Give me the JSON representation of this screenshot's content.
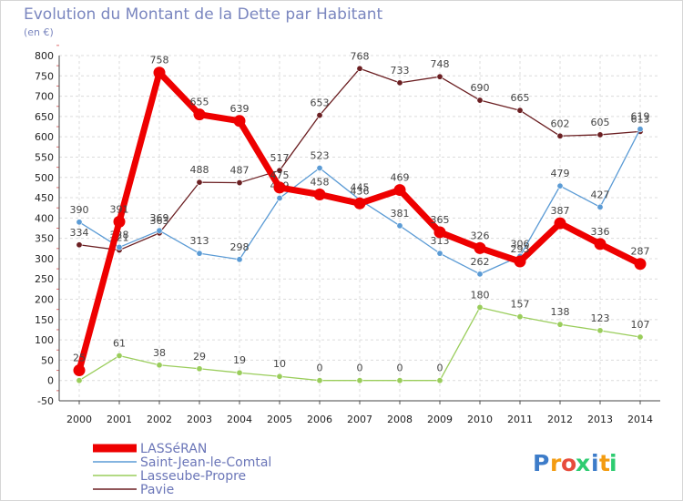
{
  "chart_data": {
    "type": "line",
    "title": "Evolution du Montant de la Dette par Habitant",
    "subtitle": "(en €)",
    "x": [
      "2000",
      "2001",
      "2002",
      "2003",
      "2004",
      "2005",
      "2006",
      "2007",
      "2008",
      "2009",
      "2010",
      "2011",
      "2012",
      "2013",
      "2014"
    ],
    "ylim": [
      -50,
      800
    ],
    "yticks": [
      -50,
      0,
      50,
      100,
      150,
      200,
      250,
      300,
      350,
      400,
      450,
      500,
      550,
      600,
      650,
      700,
      750,
      800
    ],
    "grid": true,
    "legend_position": "bottom-left",
    "series": [
      {
        "name": "Pavie",
        "color": "#6b1f22",
        "values": [
          334,
          321,
          363,
          488,
          487,
          517,
          653,
          768,
          733,
          748,
          690,
          665,
          602,
          605,
          613
        ],
        "labels": [
          "334",
          "321",
          "363",
          "488",
          "487",
          "517",
          "653",
          "768",
          "733",
          "748",
          "690",
          "665",
          "602",
          "605",
          "613"
        ]
      },
      {
        "name": "Saint-Jean-le-Comtal",
        "color": "#5b9bd5",
        "values": [
          390,
          328,
          369,
          313,
          298,
          449,
          523,
          445,
          381,
          313,
          262,
          306,
          479,
          427,
          619
        ],
        "labels": [
          "390",
          "328",
          "369",
          "313",
          "298",
          "449",
          "523",
          "445",
          "381",
          "313",
          "262",
          "306",
          "479",
          "427",
          "619"
        ]
      },
      {
        "name": "Lasseube-Propre",
        "color": "#9acd5b",
        "values": [
          0,
          61,
          38,
          29,
          19,
          10,
          0,
          0,
          0,
          0,
          180,
          157,
          138,
          123,
          107
        ],
        "labels": [
          "0",
          "61",
          "38",
          "29",
          "19",
          "10",
          "0",
          "0",
          "0",
          "0",
          "180",
          "157",
          "138",
          "123",
          "107"
        ]
      },
      {
        "name": "LASSéRAN",
        "color": "#ee0000",
        "values": [
          25,
          391,
          758,
          655,
          639,
          475,
          458,
          436,
          469,
          365,
          326,
          293,
          387,
          336,
          287
        ],
        "labels": [
          "25",
          "391",
          "758",
          "655",
          "639",
          "475",
          "458",
          "436",
          "469",
          "365",
          "326",
          "293",
          "387",
          "336",
          "287"
        ]
      }
    ],
    "legend": [
      "LASSéRAN",
      "Saint-Jean-le-Comtal",
      "Lasseube-Propre",
      "Pavie"
    ]
  },
  "logo": {
    "letters": [
      "P",
      "r",
      "o",
      "x",
      "i",
      "t",
      "i"
    ],
    "colors": [
      "#3d7cc9",
      "#f39c12",
      "#e74c3c",
      "#2ecc71",
      "#3d7cc9",
      "#f39c12",
      "#2ecc71"
    ]
  }
}
